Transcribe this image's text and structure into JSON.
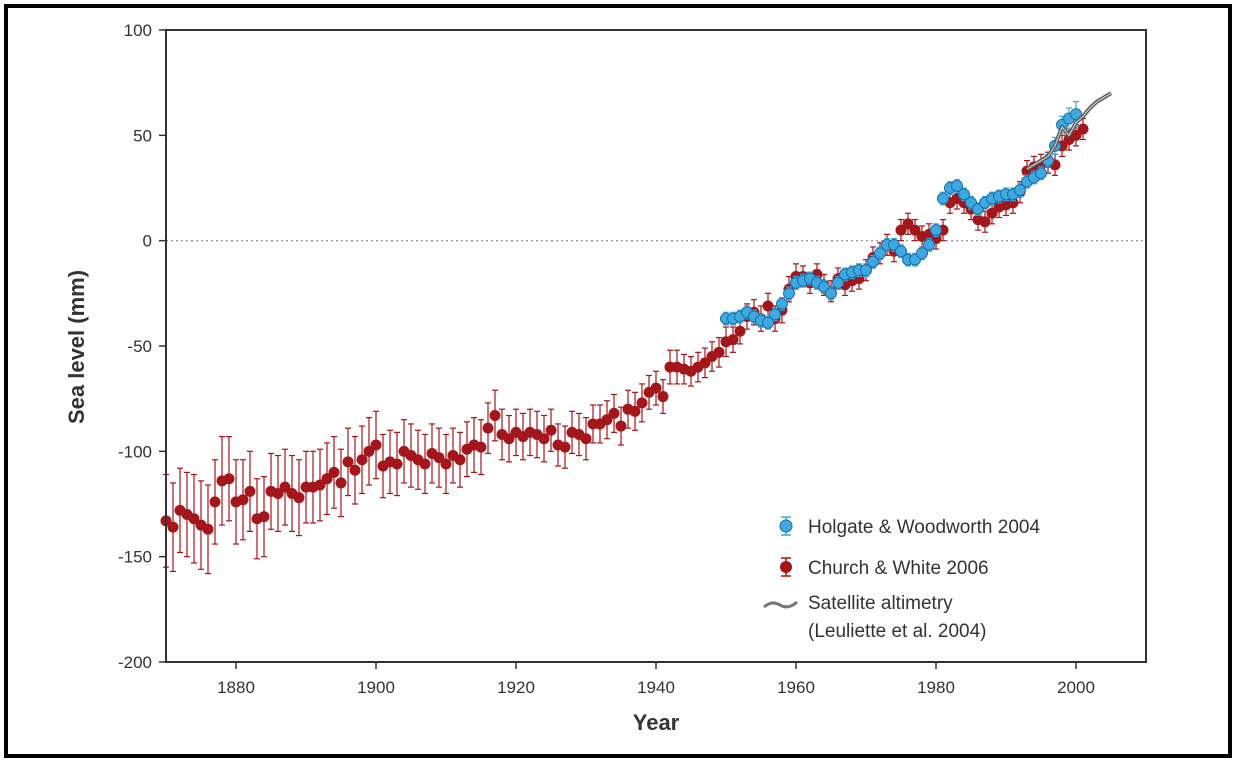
{
  "chart_data": {
    "type": "scatter",
    "xlabel": "Year",
    "ylabel": "Sea level (mm)",
    "xlim": [
      1870,
      2010
    ],
    "ylim": [
      -200,
      100
    ],
    "xticks": [
      1880,
      1900,
      1920,
      1940,
      1960,
      1980,
      2000
    ],
    "yticks": [
      100,
      50,
      0,
      -50,
      -100,
      -150,
      -200
    ],
    "zero_reference_line": "dotted",
    "grid": false,
    "legend_position": "bottom-right",
    "colors": {
      "church": "#a3161b",
      "holgate": "#3ea8e0",
      "satellite": "#777777"
    },
    "series": [
      {
        "name": "Church & White 2006",
        "style": "points-with-errorbars",
        "x": [
          1870,
          1871,
          1872,
          1873,
          1874,
          1875,
          1876,
          1877,
          1878,
          1879,
          1880,
          1881,
          1882,
          1883,
          1884,
          1885,
          1886,
          1887,
          1888,
          1889,
          1890,
          1891,
          1892,
          1893,
          1894,
          1895,
          1896,
          1897,
          1898,
          1899,
          1900,
          1901,
          1902,
          1903,
          1904,
          1905,
          1906,
          1907,
          1908,
          1909,
          1910,
          1911,
          1912,
          1913,
          1914,
          1915,
          1916,
          1917,
          1918,
          1919,
          1920,
          1921,
          1922,
          1923,
          1924,
          1925,
          1926,
          1927,
          1928,
          1929,
          1930,
          1931,
          1932,
          1933,
          1934,
          1935,
          1936,
          1937,
          1938,
          1939,
          1940,
          1941,
          1942,
          1943,
          1944,
          1945,
          1946,
          1947,
          1948,
          1949,
          1950,
          1951,
          1952,
          1953,
          1954,
          1955,
          1956,
          1957,
          1958,
          1959,
          1960,
          1961,
          1962,
          1963,
          1964,
          1965,
          1966,
          1967,
          1968,
          1969,
          1970,
          1971,
          1972,
          1973,
          1974,
          1975,
          1976,
          1977,
          1978,
          1979,
          1980,
          1981,
          1982,
          1983,
          1984,
          1985,
          1986,
          1987,
          1988,
          1989,
          1990,
          1991,
          1992,
          1993,
          1994,
          1995,
          1996,
          1997,
          1998,
          1999,
          2000,
          2001
        ],
        "y": [
          -133,
          -136,
          -128,
          -130,
          -132,
          -135,
          -137,
          -124,
          -114,
          -113,
          -124,
          -123,
          -119,
          -132,
          -131,
          -119,
          -120,
          -117,
          -120,
          -122,
          -117,
          -117,
          -116,
          -113,
          -110,
          -115,
          -105,
          -109,
          -104,
          -100,
          -97,
          -107,
          -105,
          -106,
          -100,
          -102,
          -104,
          -106,
          -101,
          -103,
          -106,
          -102,
          -104,
          -99,
          -97,
          -98,
          -89,
          -83,
          -92,
          -94,
          -91,
          -93,
          -91,
          -92,
          -94,
          -90,
          -97,
          -98,
          -91,
          -92,
          -94,
          -87,
          -87,
          -85,
          -82,
          -88,
          -80,
          -81,
          -77,
          -72,
          -70,
          -74,
          -60,
          -60,
          -61,
          -62,
          -60,
          -58,
          -55,
          -53,
          -48,
          -47,
          -43,
          -36,
          -34,
          -37,
          -31,
          -37,
          -33,
          -23,
          -17,
          -17,
          -20,
          -16,
          -21,
          -24,
          -18,
          -21,
          -19,
          -18,
          -14,
          -8,
          -6,
          -2,
          -5,
          5,
          8,
          5,
          2,
          3,
          1,
          5,
          18,
          20,
          18,
          15,
          10,
          9,
          13,
          16,
          17,
          18,
          23,
          33,
          35,
          36,
          37,
          36,
          45,
          48,
          50,
          53
        ],
        "error": [
          22,
          21,
          20,
          20,
          21,
          21,
          21,
          20,
          21,
          20,
          20,
          19,
          19,
          19,
          19,
          18,
          18,
          18,
          18,
          18,
          17,
          17,
          17,
          17,
          17,
          16,
          16,
          16,
          16,
          16,
          16,
          15,
          15,
          15,
          15,
          15,
          14,
          14,
          14,
          14,
          14,
          13,
          13,
          13,
          13,
          13,
          12,
          12,
          12,
          11,
          11,
          11,
          11,
          11,
          11,
          10,
          10,
          10,
          10,
          10,
          10,
          9,
          9,
          9,
          9,
          9,
          9,
          9,
          9,
          8,
          8,
          8,
          8,
          8,
          7,
          7,
          7,
          7,
          7,
          7,
          7,
          6,
          6,
          6,
          6,
          6,
          6,
          6,
          6,
          6,
          6,
          5,
          5,
          5,
          5,
          5,
          5,
          5,
          5,
          5,
          5,
          5,
          5,
          5,
          5,
          5,
          5,
          5,
          5,
          5,
          5,
          5,
          5,
          5,
          5,
          5,
          5,
          5,
          5,
          5,
          5,
          5,
          5,
          5,
          5,
          5,
          5,
          5,
          5,
          5,
          5,
          5
        ]
      },
      {
        "name": "Holgate & Woodworth 2004",
        "style": "points-with-errorbars",
        "x": [
          1950,
          1951,
          1952,
          1953,
          1954,
          1955,
          1956,
          1957,
          1958,
          1959,
          1960,
          1961,
          1962,
          1963,
          1964,
          1965,
          1966,
          1967,
          1968,
          1969,
          1970,
          1971,
          1972,
          1973,
          1974,
          1975,
          1976,
          1977,
          1978,
          1979,
          1980,
          1981,
          1982,
          1983,
          1984,
          1985,
          1986,
          1987,
          1988,
          1989,
          1990,
          1991,
          1992,
          1993,
          1994,
          1995,
          1996,
          1997,
          1998,
          1999,
          2000
        ],
        "y": [
          -37,
          -37,
          -36,
          -34,
          -36,
          -38,
          -39,
          -35,
          -30,
          -25,
          -20,
          -19,
          -18,
          -20,
          -22,
          -25,
          -20,
          -16,
          -15,
          -14,
          -14,
          -10,
          -6,
          -2,
          -2,
          -5,
          -9,
          -9,
          -6,
          -2,
          5,
          20,
          25,
          26,
          22,
          18,
          15,
          18,
          20,
          21,
          22,
          22,
          24,
          28,
          30,
          32,
          38,
          45,
          55,
          58,
          60
        ],
        "error": [
          3,
          3,
          3,
          3,
          3,
          3,
          3,
          3,
          3,
          3,
          3,
          3,
          3,
          3,
          3,
          3,
          3,
          3,
          3,
          3,
          3,
          3,
          3,
          3,
          3,
          3,
          3,
          3,
          3,
          3,
          3,
          3,
          3,
          3,
          3,
          3,
          3,
          3,
          3,
          3,
          3,
          3,
          3,
          3,
          3,
          3,
          3,
          4,
          4,
          5,
          6
        ]
      },
      {
        "name": "Satellite altimetry",
        "name_line2": "(Leuliette et al. 2004)",
        "style": "line",
        "x": [
          1993,
          1994,
          1995,
          1996,
          1997,
          1998,
          1999,
          2000,
          2001,
          2002,
          2003,
          2004,
          2005
        ],
        "y": [
          34,
          36,
          38,
          40,
          45,
          54,
          50,
          56,
          59,
          63,
          66,
          68,
          70
        ]
      }
    ]
  }
}
